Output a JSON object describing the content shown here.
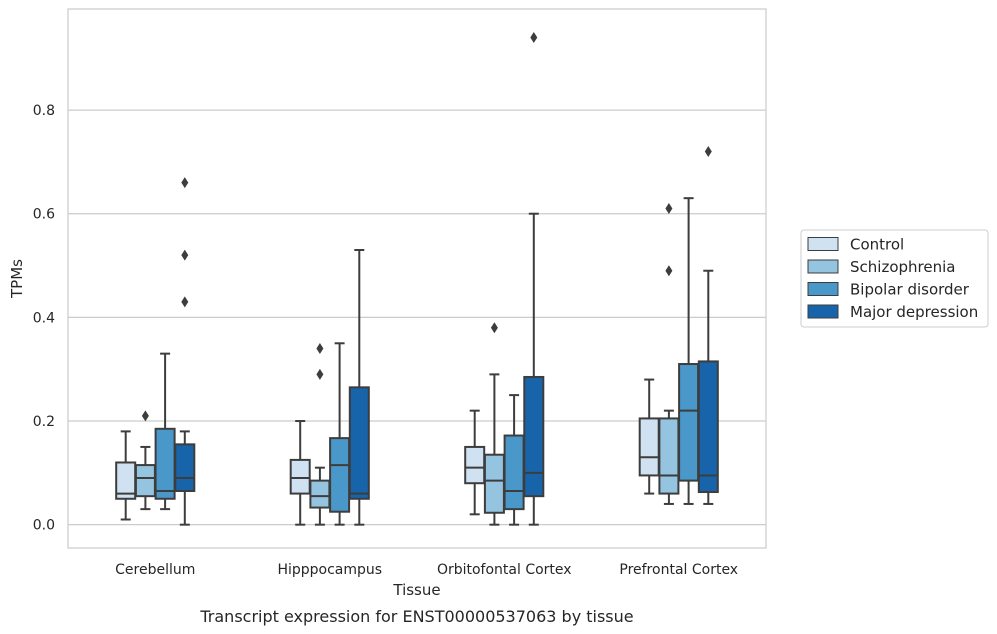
{
  "caption": "Transcript expression for ENST00000537063 by tissue",
  "chart_data": {
    "type": "box",
    "xlabel": "Tissue",
    "ylabel": "TPMs",
    "ylim": [
      -0.045,
      0.995
    ],
    "yticks": [
      0.0,
      0.2,
      0.4,
      0.6,
      0.8
    ],
    "ytick_labels": [
      "0.0",
      "0.2",
      "0.4",
      "0.6",
      "0.8"
    ],
    "grid": "horizontal",
    "legend_position": "right",
    "categories": [
      "Cerebellum",
      "Hipppocampus",
      "Orbitofontal Cortex",
      "Prefrontal Cortex"
    ],
    "series": [
      {
        "name": "Control",
        "color": "#d0e1f2",
        "boxes": [
          {
            "whisker_low": 0.01,
            "q1": 0.05,
            "median": 0.06,
            "q3": 0.12,
            "whisker_high": 0.18,
            "outliers": []
          },
          {
            "whisker_low": 0.0,
            "q1": 0.06,
            "median": 0.09,
            "q3": 0.125,
            "whisker_high": 0.2,
            "outliers": []
          },
          {
            "whisker_low": 0.02,
            "q1": 0.08,
            "median": 0.11,
            "q3": 0.15,
            "whisker_high": 0.22,
            "outliers": []
          },
          {
            "whisker_low": 0.06,
            "q1": 0.095,
            "median": 0.13,
            "q3": 0.205,
            "whisker_high": 0.28,
            "outliers": []
          }
        ]
      },
      {
        "name": "Schizophrenia",
        "color": "#94c4df",
        "boxes": [
          {
            "whisker_low": 0.03,
            "q1": 0.055,
            "median": 0.09,
            "q3": 0.115,
            "whisker_high": 0.15,
            "outliers": [
              0.21
            ]
          },
          {
            "whisker_low": 0.0,
            "q1": 0.033,
            "median": 0.055,
            "q3": 0.085,
            "whisker_high": 0.11,
            "outliers": [
              0.29,
              0.34
            ]
          },
          {
            "whisker_low": 0.0,
            "q1": 0.023,
            "median": 0.085,
            "q3": 0.135,
            "whisker_high": 0.29,
            "outliers": [
              0.38
            ]
          },
          {
            "whisker_low": 0.04,
            "q1": 0.06,
            "median": 0.095,
            "q3": 0.205,
            "whisker_high": 0.22,
            "outliers": [
              0.49,
              0.61
            ]
          }
        ]
      },
      {
        "name": "Bipolar disorder",
        "color": "#4a98c9",
        "boxes": [
          {
            "whisker_low": 0.03,
            "q1": 0.05,
            "median": 0.065,
            "q3": 0.185,
            "whisker_high": 0.33,
            "outliers": []
          },
          {
            "whisker_low": 0.0,
            "q1": 0.025,
            "median": 0.115,
            "q3": 0.167,
            "whisker_high": 0.35,
            "outliers": []
          },
          {
            "whisker_low": 0.0,
            "q1": 0.03,
            "median": 0.065,
            "q3": 0.172,
            "whisker_high": 0.25,
            "outliers": []
          },
          {
            "whisker_low": 0.04,
            "q1": 0.085,
            "median": 0.22,
            "q3": 0.31,
            "whisker_high": 0.63,
            "outliers": []
          }
        ]
      },
      {
        "name": "Major depression",
        "color": "#1764ab",
        "boxes": [
          {
            "whisker_low": 0.0,
            "q1": 0.065,
            "median": 0.09,
            "q3": 0.155,
            "whisker_high": 0.18,
            "outliers": [
              0.43,
              0.52,
              0.66
            ]
          },
          {
            "whisker_low": 0.0,
            "q1": 0.05,
            "median": 0.06,
            "q3": 0.265,
            "whisker_high": 0.53,
            "outliers": []
          },
          {
            "whisker_low": 0.0,
            "q1": 0.055,
            "median": 0.1,
            "q3": 0.285,
            "whisker_high": 0.6,
            "outliers": [
              0.94
            ]
          },
          {
            "whisker_low": 0.04,
            "q1": 0.063,
            "median": 0.095,
            "q3": 0.315,
            "whisker_high": 0.49,
            "outliers": [
              0.72
            ]
          }
        ]
      }
    ]
  }
}
